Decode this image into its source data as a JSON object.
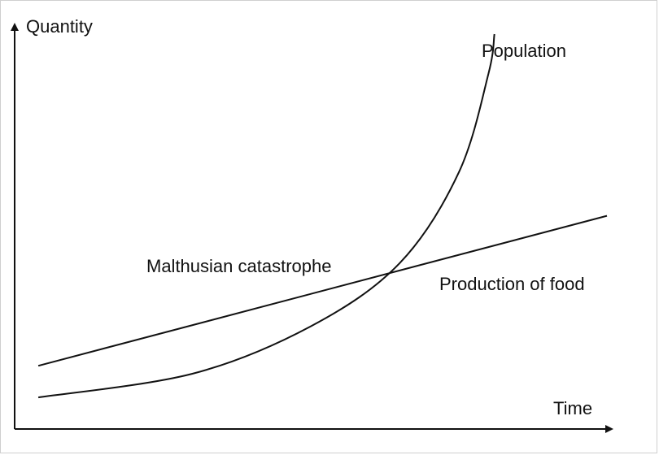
{
  "chart_data": {
    "type": "line",
    "axes": {
      "xlabel": "Time",
      "ylabel": "Quantity",
      "ticks": false,
      "grid": false,
      "xlim": [
        0,
        10
      ],
      "ylim": [
        0,
        10
      ]
    },
    "series": [
      {
        "name": "Population",
        "shape": "exponential",
        "points": [
          [
            0.4,
            0.8
          ],
          [
            3.0,
            1.4
          ],
          [
            5.0,
            2.6
          ],
          [
            6.5,
            4.2
          ],
          [
            7.5,
            6.5
          ],
          [
            8.0,
            9.0
          ],
          [
            8.1,
            10.0
          ]
        ]
      },
      {
        "name": "Production of food",
        "shape": "linear",
        "points": [
          [
            0.4,
            1.6
          ],
          [
            10.0,
            5.4
          ]
        ]
      }
    ],
    "annotations": [
      {
        "text": "Malthusian catastrophe",
        "at": "intersection"
      }
    ],
    "colors": {
      "lines": "#111111",
      "background": "#ffffff"
    }
  }
}
